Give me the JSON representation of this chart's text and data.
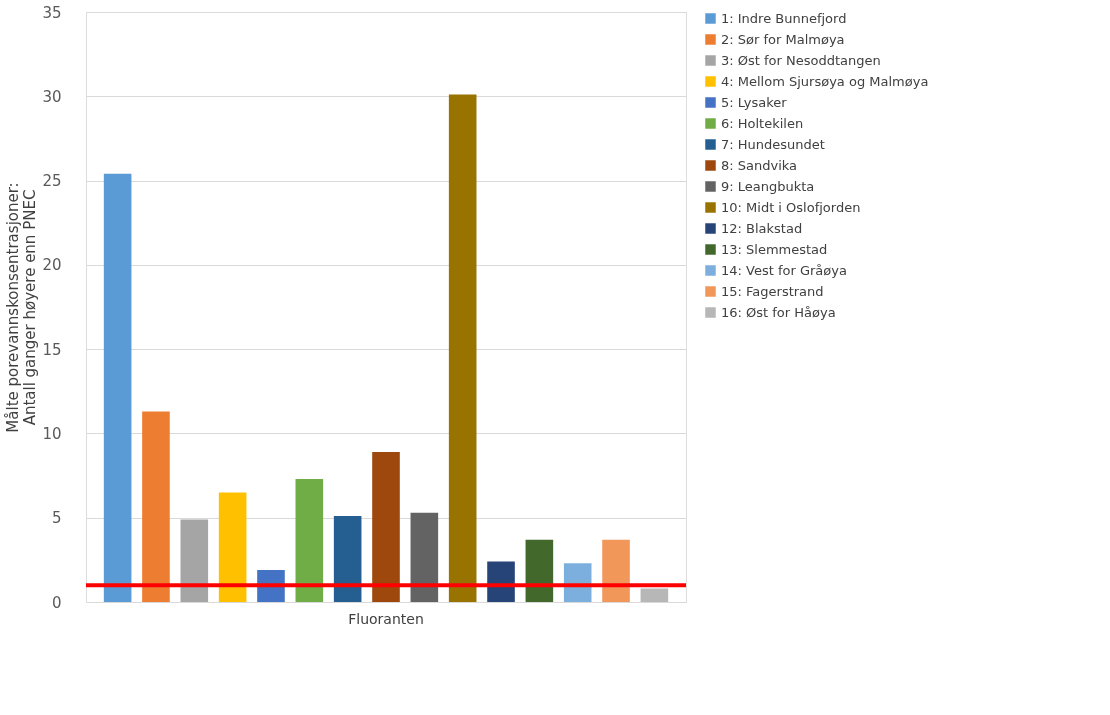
{
  "chart_data": {
    "type": "bar",
    "ylabel": "Målte porevannskonsentrasjoner:\nAntall ganger høyere enn PNEC",
    "categories": [
      "Fluoranten"
    ],
    "series": [
      {
        "name": "1: Indre Bunnefjord",
        "color": "#5b9bd5",
        "values": [
          25.4
        ]
      },
      {
        "name": "2: Sør for Malmøya",
        "color": "#ed7d31",
        "values": [
          11.3
        ]
      },
      {
        "name": "3: Øst for Nesoddtangen",
        "color": "#a5a5a5",
        "values": [
          4.9
        ]
      },
      {
        "name": "4: Mellom Sjursøya og Malmøya",
        "color": "#ffc000",
        "values": [
          6.5
        ]
      },
      {
        "name": "5: Lysaker",
        "color": "#4472c4",
        "values": [
          1.9
        ]
      },
      {
        "name": "6: Holtekilen",
        "color": "#70ad47",
        "values": [
          7.3
        ]
      },
      {
        "name": "7: Hundesundet",
        "color": "#255e91",
        "values": [
          5.1
        ]
      },
      {
        "name": "8: Sandvika",
        "color": "#9e480e",
        "values": [
          8.9
        ]
      },
      {
        "name": "9: Leangbukta",
        "color": "#636363",
        "values": [
          5.3
        ]
      },
      {
        "name": "10: Midt i Oslofjorden",
        "color": "#997300",
        "values": [
          30.1
        ]
      },
      {
        "name": "12: Blakstad",
        "color": "#264478",
        "values": [
          2.4
        ]
      },
      {
        "name": "13: Slemmestad",
        "color": "#43682b",
        "values": [
          3.7
        ]
      },
      {
        "name": "14: Vest for Gråøya",
        "color": "#7cafdd",
        "values": [
          2.3
        ]
      },
      {
        "name": "15: Fagerstrand",
        "color": "#f1975a",
        "values": [
          3.7
        ]
      },
      {
        "name": "16: Øst for Håøya",
        "color": "#b7b7b7",
        "values": [
          0.8
        ]
      }
    ],
    "ylim": [
      0,
      35
    ],
    "yticks": [
      0,
      5,
      10,
      15,
      20,
      25,
      30,
      35
    ],
    "grid": "y",
    "legend": "right",
    "ref_lines": [
      {
        "axis": "y",
        "value": 1,
        "color": "#ff0000"
      }
    ]
  }
}
